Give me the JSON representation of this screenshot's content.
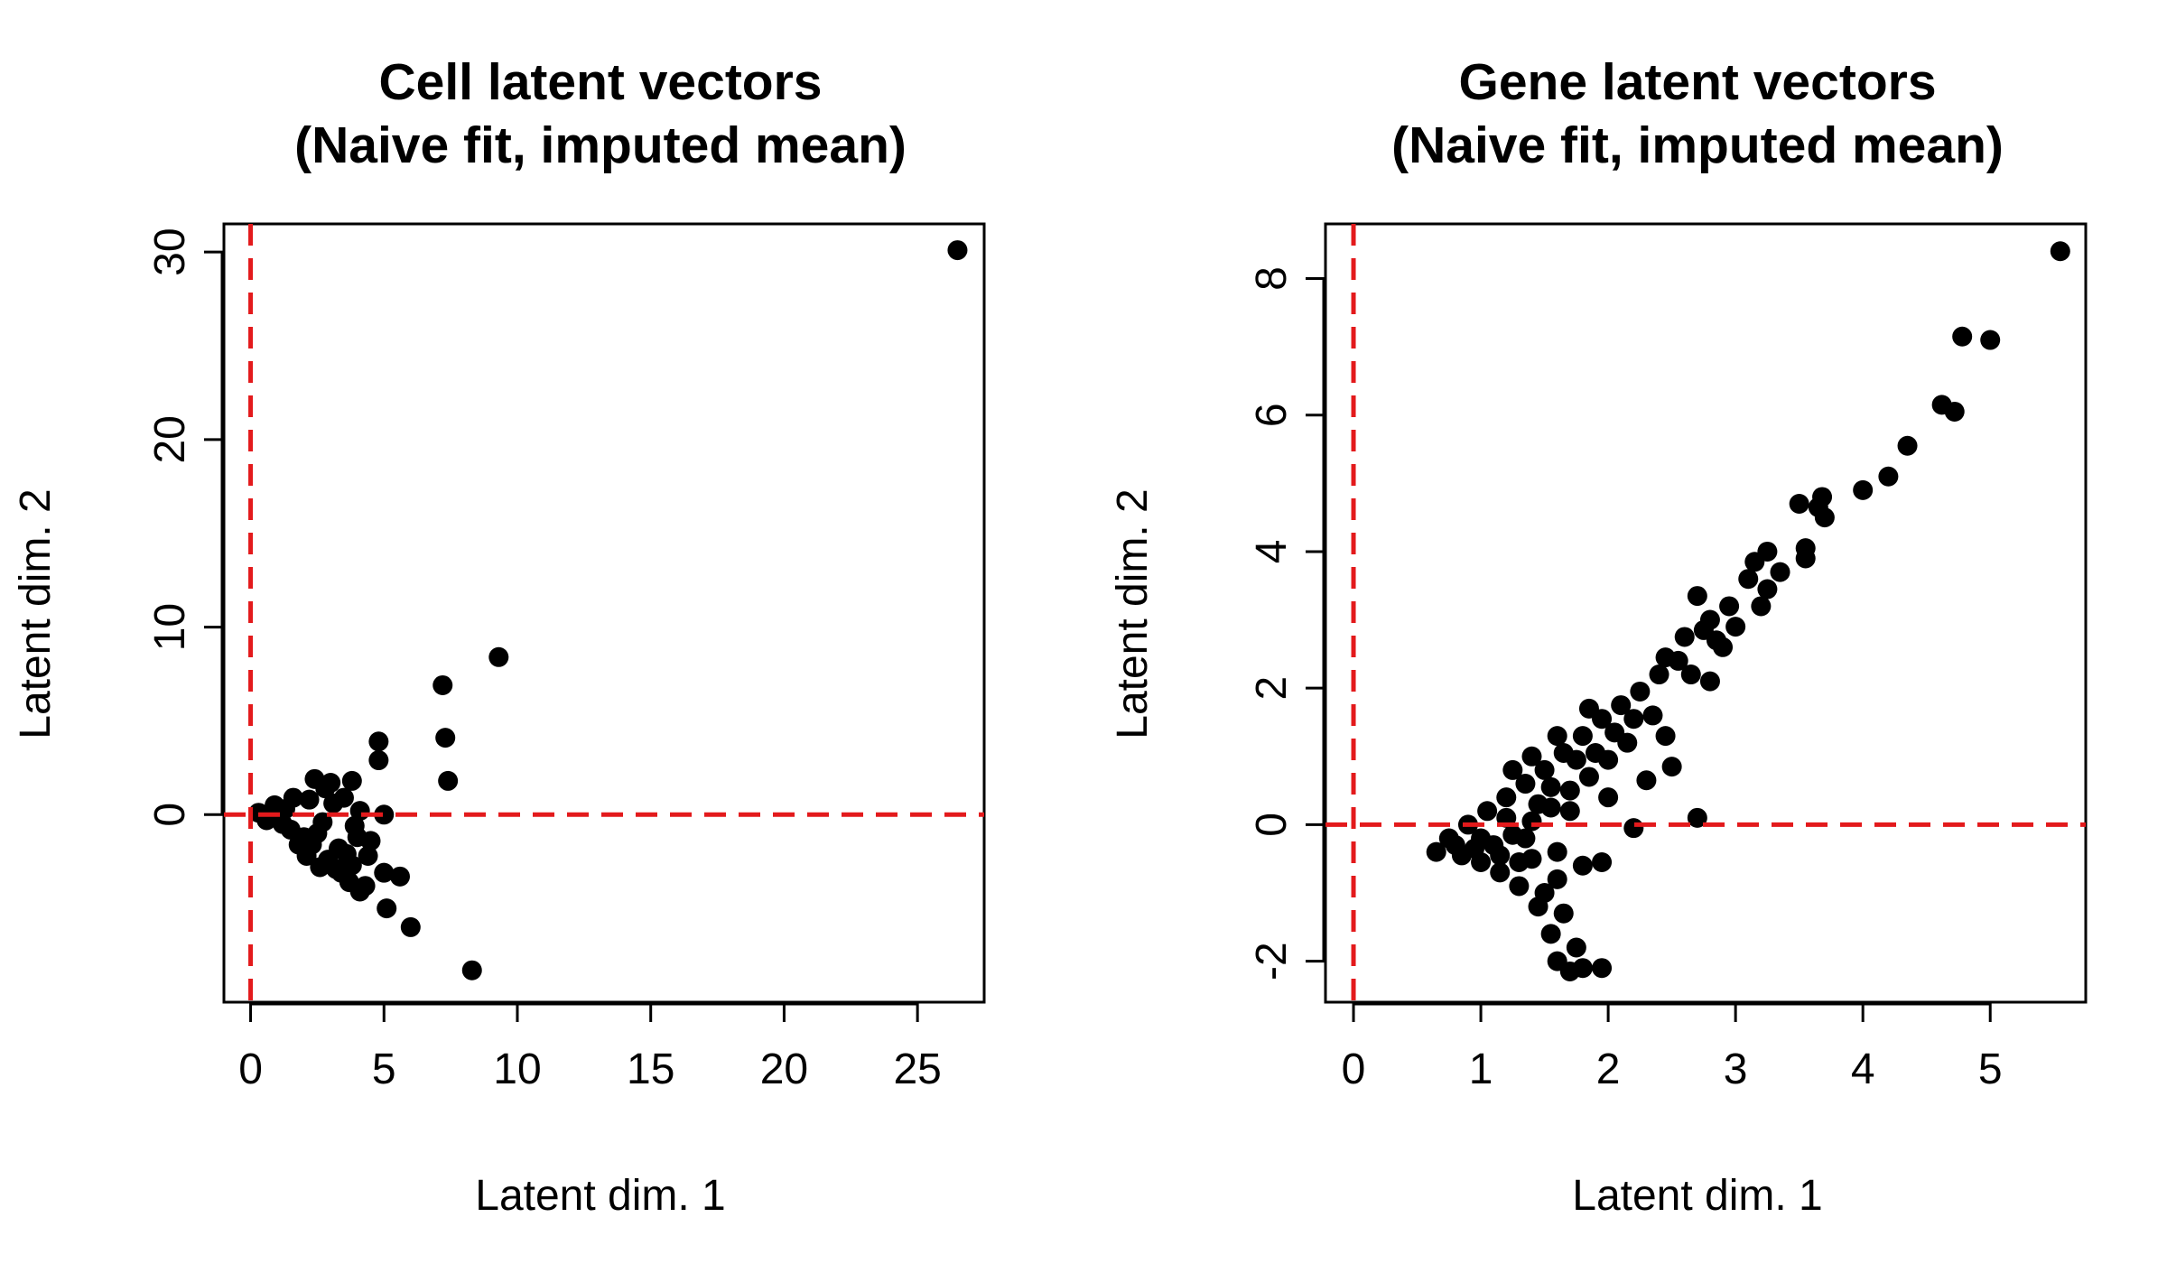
{
  "chart_data": [
    {
      "type": "scatter",
      "title_lines": [
        "Cell latent vectors",
        "(Naive fit, imputed mean)"
      ],
      "xlabel": "Latent dim. 1",
      "ylabel": "Latent dim. 2",
      "xlim": [
        -1,
        27.5
      ],
      "ylim": [
        -10,
        31.5
      ],
      "xticks": [
        0,
        5,
        10,
        15,
        20,
        25
      ],
      "yticks": [
        0,
        10,
        20,
        30
      ],
      "grid": false,
      "reference_lines": {
        "x": 0,
        "y": 0,
        "color": "#e31a1c",
        "style": "dashed"
      },
      "point_color": "#000000",
      "points": [
        [
          26.5,
          30.1
        ],
        [
          9.3,
          8.4
        ],
        [
          7.2,
          6.9
        ],
        [
          7.3,
          4.1
        ],
        [
          7.4,
          1.8
        ],
        [
          8.3,
          -8.3
        ],
        [
          6.0,
          -6.0
        ],
        [
          5.6,
          -3.3
        ],
        [
          5.1,
          -5.0
        ],
        [
          5.0,
          -3.1
        ],
        [
          4.8,
          3.9
        ],
        [
          4.8,
          2.9
        ],
        [
          5.0,
          0.0
        ],
        [
          4.5,
          -1.4
        ],
        [
          4.4,
          -2.2
        ],
        [
          4.3,
          -3.8
        ],
        [
          4.1,
          -4.1
        ],
        [
          3.8,
          1.8
        ],
        [
          3.9,
          -0.6
        ],
        [
          3.8,
          -2.7
        ],
        [
          3.7,
          -3.6
        ],
        [
          3.4,
          -3.1
        ],
        [
          3.2,
          -2.9
        ],
        [
          2.9,
          -2.4
        ],
        [
          2.6,
          -2.8
        ],
        [
          2.4,
          1.9
        ],
        [
          2.3,
          -1.6
        ],
        [
          2.0,
          -1.2
        ],
        [
          2.2,
          0.8
        ],
        [
          1.8,
          -1.6
        ],
        [
          1.5,
          -0.8
        ],
        [
          1.2,
          -0.5
        ],
        [
          0.9,
          0.5
        ],
        [
          0.6,
          -0.3
        ],
        [
          0.3,
          0.1
        ],
        [
          1.6,
          0.9
        ],
        [
          2.8,
          1.4
        ],
        [
          3.1,
          0.6
        ],
        [
          3.3,
          -1.8
        ],
        [
          2.7,
          -0.4
        ],
        [
          3.5,
          0.9
        ],
        [
          4.1,
          0.2
        ],
        [
          4.0,
          -1.2
        ],
        [
          3.6,
          -2.1
        ],
        [
          2.1,
          -2.2
        ],
        [
          1.3,
          0.3
        ],
        [
          2.5,
          -1.0
        ],
        [
          3.0,
          1.7
        ]
      ]
    },
    {
      "type": "scatter",
      "title_lines": [
        "Gene latent vectors",
        "(Naive fit, imputed mean)"
      ],
      "xlabel": "Latent dim. 1",
      "ylabel": "Latent dim. 2",
      "xlim": [
        -0.22,
        5.75
      ],
      "ylim": [
        -2.6,
        8.8
      ],
      "xticks": [
        0,
        1,
        2,
        3,
        4,
        5
      ],
      "yticks": [
        -2,
        0,
        2,
        4,
        6,
        8
      ],
      "grid": false,
      "reference_lines": {
        "x": 0,
        "y": 0,
        "color": "#e31a1c",
        "style": "dashed"
      },
      "point_color": "#000000",
      "points": [
        [
          5.55,
          8.4
        ],
        [
          4.78,
          7.15
        ],
        [
          5.0,
          7.1
        ],
        [
          4.62,
          6.15
        ],
        [
          4.72,
          6.05
        ],
        [
          4.35,
          5.55
        ],
        [
          4.2,
          5.1
        ],
        [
          4.0,
          4.9
        ],
        [
          3.68,
          4.8
        ],
        [
          3.5,
          4.7
        ],
        [
          3.65,
          4.65
        ],
        [
          3.7,
          4.5
        ],
        [
          3.55,
          4.05
        ],
        [
          3.55,
          3.9
        ],
        [
          3.25,
          4.0
        ],
        [
          3.35,
          3.7
        ],
        [
          3.15,
          3.85
        ],
        [
          3.25,
          3.45
        ],
        [
          3.1,
          3.6
        ],
        [
          3.2,
          3.2
        ],
        [
          2.95,
          3.2
        ],
        [
          2.7,
          3.35
        ],
        [
          2.8,
          3.0
        ],
        [
          3.0,
          2.9
        ],
        [
          2.75,
          2.85
        ],
        [
          2.9,
          2.6
        ],
        [
          2.85,
          2.7
        ],
        [
          2.6,
          2.75
        ],
        [
          2.8,
          2.1
        ],
        [
          2.65,
          2.2
        ],
        [
          2.45,
          2.45
        ],
        [
          2.5,
          0.85
        ],
        [
          2.3,
          0.65
        ],
        [
          2.2,
          -0.05
        ],
        [
          2.7,
          0.1
        ],
        [
          1.95,
          -0.55
        ],
        [
          1.95,
          -2.1
        ],
        [
          1.8,
          -2.1
        ],
        [
          1.7,
          -2.15
        ],
        [
          1.6,
          -2.0
        ],
        [
          1.75,
          -1.8
        ],
        [
          1.55,
          -1.6
        ],
        [
          1.45,
          -1.2
        ],
        [
          1.3,
          -0.9
        ],
        [
          1.15,
          -0.7
        ],
        [
          1.0,
          -0.55
        ],
        [
          0.85,
          -0.45
        ],
        [
          0.65,
          -0.4
        ],
        [
          0.75,
          -0.2
        ],
        [
          0.9,
          0.0
        ],
        [
          1.05,
          0.2
        ],
        [
          1.2,
          0.4
        ],
        [
          1.35,
          0.6
        ],
        [
          1.5,
          0.8
        ],
        [
          1.65,
          1.05
        ],
        [
          1.8,
          1.3
        ],
        [
          1.95,
          1.55
        ],
        [
          2.1,
          1.75
        ],
        [
          2.25,
          1.95
        ],
        [
          2.4,
          2.2
        ],
        [
          2.55,
          2.4
        ],
        [
          2.35,
          1.6
        ],
        [
          2.15,
          1.2
        ],
        [
          2.0,
          0.95
        ],
        [
          1.85,
          0.7
        ],
        [
          1.7,
          0.5
        ],
        [
          1.55,
          0.25
        ],
        [
          1.4,
          0.05
        ],
        [
          1.25,
          -0.15
        ],
        [
          1.1,
          -0.3
        ],
        [
          1.4,
          -0.5
        ],
        [
          1.6,
          -0.4
        ],
        [
          1.8,
          -0.6
        ],
        [
          1.5,
          -1.0
        ],
        [
          1.65,
          -1.3
        ],
        [
          1.35,
          -0.2
        ],
        [
          1.2,
          0.1
        ],
        [
          1.0,
          -0.2
        ],
        [
          1.55,
          0.55
        ],
        [
          1.9,
          1.05
        ],
        [
          2.05,
          1.35
        ],
        [
          2.2,
          1.55
        ],
        [
          1.75,
          0.95
        ],
        [
          1.45,
          0.3
        ],
        [
          1.3,
          -0.55
        ],
        [
          1.6,
          -0.8
        ],
        [
          1.15,
          -0.45
        ],
        [
          0.95,
          -0.35
        ],
        [
          0.8,
          -0.3
        ],
        [
          1.7,
          0.2
        ],
        [
          1.85,
          1.7
        ],
        [
          1.6,
          1.3
        ],
        [
          2.45,
          1.3
        ],
        [
          2.0,
          0.4
        ],
        [
          1.25,
          0.8
        ],
        [
          1.4,
          1.0
        ]
      ]
    }
  ]
}
